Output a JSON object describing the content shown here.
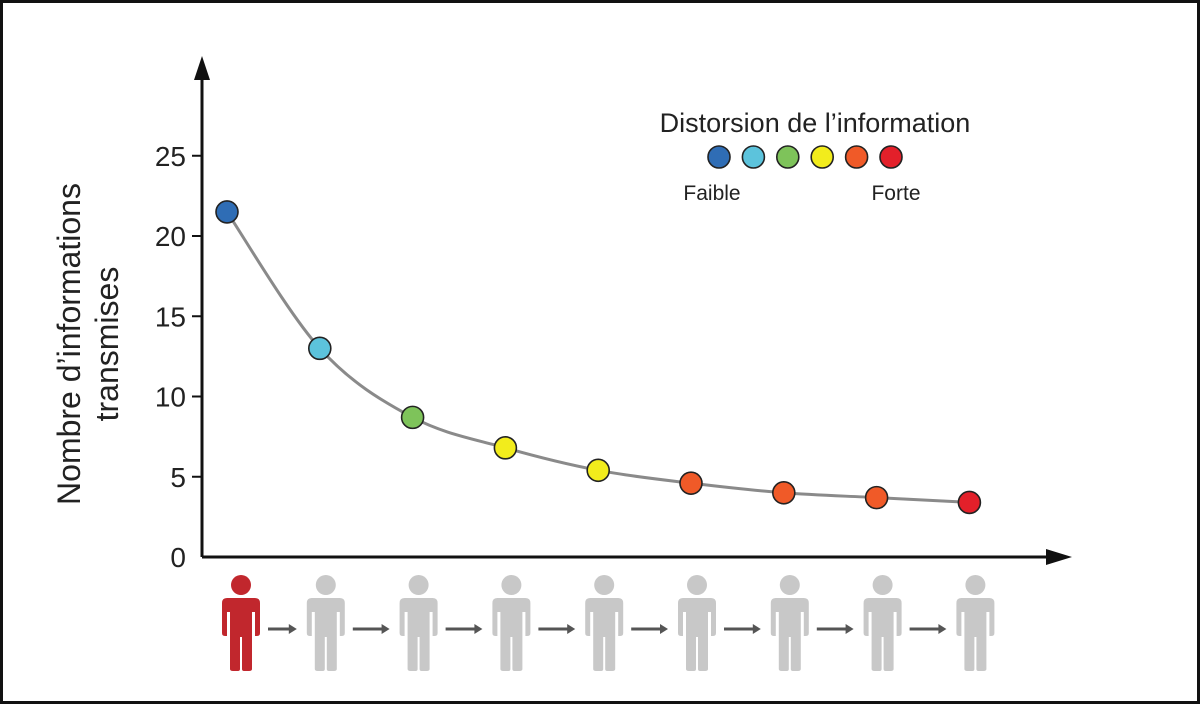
{
  "chart_data": {
    "type": "line",
    "ylabel_line1": "Nombre d’informations",
    "ylabel_line2": "transmises",
    "xlabel": "",
    "ylim": [
      0,
      28
    ],
    "yticks": [
      0,
      5,
      10,
      15,
      20,
      25
    ],
    "x": [
      1,
      2,
      3,
      4,
      5,
      6,
      7,
      8,
      9
    ],
    "values": [
      21.5,
      13,
      8.7,
      6.8,
      5.4,
      4.6,
      4.0,
      3.7,
      3.4
    ],
    "point_colors": [
      "#2f6db5",
      "#5cc3dc",
      "#7ec35a",
      "#f2ec1c",
      "#f2ec1c",
      "#f05a28",
      "#f05a28",
      "#f05a28",
      "#e3202a"
    ],
    "line_color": "#8a8a8a",
    "legend": {
      "title": "Distorsion de l’information",
      "colors": [
        "#2f6db5",
        "#5cc3dc",
        "#7ec35a",
        "#f2ec1c",
        "#f05a28",
        "#e3202a"
      ],
      "low_label": "Faible",
      "high_label": "Forte"
    },
    "people": {
      "count": 9,
      "first_color": "#c1272d",
      "other_color": "#c8c8c8",
      "arrow_color": "#555555"
    },
    "grid": false
  }
}
